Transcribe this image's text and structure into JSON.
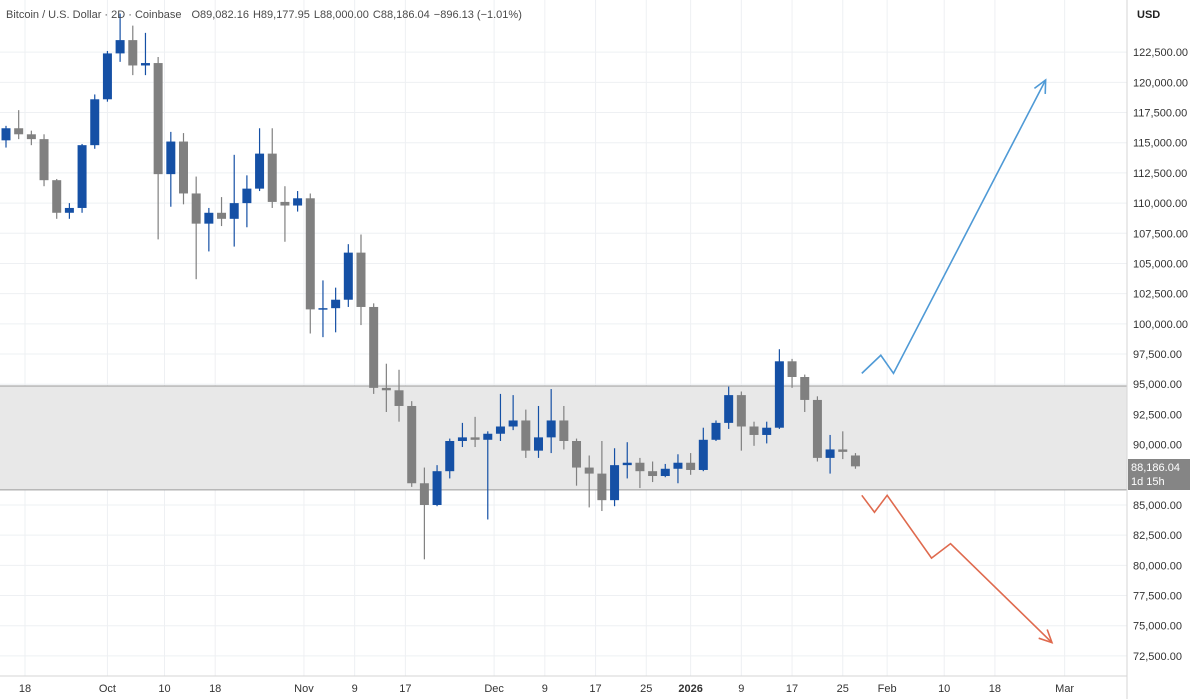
{
  "legend": {
    "symbol": "Bitcoin / U.S. Dollar · 2D · Coinbase",
    "open": "O89,082.16",
    "high": "H89,177.95",
    "low": "L88,000.00",
    "close": "C88,186.04",
    "change": "−896.13 (−1.01%)"
  },
  "currency": "USD",
  "last_price": {
    "value": "88,186.04",
    "countdown": "1d 15h"
  },
  "chart_data": {
    "type": "candlestick",
    "y_axis": {
      "range": [
        71500,
        125000
      ],
      "ticks": [
        72500,
        75000,
        77500,
        80000,
        82500,
        85000,
        87500,
        90000,
        92500,
        95000,
        97500,
        100000,
        102500,
        105000,
        107500,
        110000,
        112500,
        115000,
        117500,
        120000,
        122500
      ],
      "tick_labels": [
        "72,500.00",
        "75,000.00",
        "77,500.00",
        "80,000.00",
        "82,500.00",
        "85,000.00",
        "87,500.00",
        "90,000.00",
        "92,500.00",
        "95,000.00",
        "97,500.00",
        "100,000.00",
        "102,500.00",
        "105,000.00",
        "107,500.00",
        "110,000.00",
        "112,500.00",
        "115,000.00",
        "117,500.00",
        "120,000.00",
        "122,500.00"
      ]
    },
    "x_axis": {
      "start": "2025-09-15",
      "end": "2026-03-05",
      "ticks": [
        {
          "date": "2025-09-18",
          "label": "18"
        },
        {
          "date": "2025-10-01",
          "label": "Oct"
        },
        {
          "date": "2025-10-10",
          "label": "10"
        },
        {
          "date": "2025-10-18",
          "label": "18"
        },
        {
          "date": "2025-11-01",
          "label": "Nov"
        },
        {
          "date": "2025-11-09",
          "label": "9"
        },
        {
          "date": "2025-11-17",
          "label": "17"
        },
        {
          "date": "2025-12-01",
          "label": "Dec"
        },
        {
          "date": "2025-12-09",
          "label": "9"
        },
        {
          "date": "2025-12-17",
          "label": "17"
        },
        {
          "date": "2025-12-25",
          "label": "25"
        },
        {
          "date": "2026-01-01",
          "label": "2026",
          "bold": true
        },
        {
          "date": "2026-01-09",
          "label": "9"
        },
        {
          "date": "2026-01-17",
          "label": "17"
        },
        {
          "date": "2026-01-25",
          "label": "25"
        },
        {
          "date": "2026-02-01",
          "label": "Feb"
        },
        {
          "date": "2026-02-10",
          "label": "10"
        },
        {
          "date": "2026-02-18",
          "label": "18"
        },
        {
          "date": "2026-03-01",
          "label": "Mar"
        }
      ]
    },
    "candles": [
      {
        "date": "2025-09-15",
        "o": 115200,
        "h": 116400,
        "l": 114600,
        "c": 116200
      },
      {
        "date": "2025-09-17",
        "o": 116200,
        "h": 117700,
        "l": 115300,
        "c": 115700
      },
      {
        "date": "2025-09-19",
        "o": 115700,
        "h": 116000,
        "l": 114800,
        "c": 115300
      },
      {
        "date": "2025-09-21",
        "o": 115300,
        "h": 115700,
        "l": 111400,
        "c": 111900
      },
      {
        "date": "2025-09-23",
        "o": 111900,
        "h": 112000,
        "l": 108700,
        "c": 109200
      },
      {
        "date": "2025-09-25",
        "o": 109200,
        "h": 110000,
        "l": 108700,
        "c": 109600
      },
      {
        "date": "2025-09-27",
        "o": 109600,
        "h": 114900,
        "l": 109200,
        "c": 114800
      },
      {
        "date": "2025-09-29",
        "o": 114800,
        "h": 119000,
        "l": 114500,
        "c": 118600
      },
      {
        "date": "2025-10-01",
        "o": 118600,
        "h": 122600,
        "l": 118400,
        "c": 122400
      },
      {
        "date": "2025-10-03",
        "o": 122400,
        "h": 125700,
        "l": 121700,
        "c": 123500
      },
      {
        "date": "2025-10-05",
        "o": 123500,
        "h": 124700,
        "l": 120600,
        "c": 121400
      },
      {
        "date": "2025-10-07",
        "o": 121400,
        "h": 124100,
        "l": 120600,
        "c": 121600
      },
      {
        "date": "2025-10-09",
        "o": 121600,
        "h": 122100,
        "l": 107000,
        "c": 112400
      },
      {
        "date": "2025-10-11",
        "o": 112400,
        "h": 115900,
        "l": 109700,
        "c": 115100
      },
      {
        "date": "2025-10-13",
        "o": 115100,
        "h": 115800,
        "l": 109900,
        "c": 110800
      },
      {
        "date": "2025-10-15",
        "o": 110800,
        "h": 112200,
        "l": 103700,
        "c": 108300
      },
      {
        "date": "2025-10-17",
        "o": 108300,
        "h": 109600,
        "l": 106000,
        "c": 109200
      },
      {
        "date": "2025-10-19",
        "o": 109200,
        "h": 110500,
        "l": 108100,
        "c": 108700
      },
      {
        "date": "2025-10-21",
        "o": 108700,
        "h": 114000,
        "l": 106400,
        "c": 110000
      },
      {
        "date": "2025-10-23",
        "o": 110000,
        "h": 112300,
        "l": 108000,
        "c": 111200
      },
      {
        "date": "2025-10-25",
        "o": 111200,
        "h": 116200,
        "l": 111000,
        "c": 114100
      },
      {
        "date": "2025-10-27",
        "o": 114100,
        "h": 116200,
        "l": 109600,
        "c": 110100
      },
      {
        "date": "2025-10-29",
        "o": 110100,
        "h": 111400,
        "l": 106800,
        "c": 109800
      },
      {
        "date": "2025-10-31",
        "o": 109800,
        "h": 111000,
        "l": 109300,
        "c": 110400
      },
      {
        "date": "2025-11-02",
        "o": 110400,
        "h": 110800,
        "l": 99200,
        "c": 101200
      },
      {
        "date": "2025-11-04",
        "o": 101200,
        "h": 103600,
        "l": 98900,
        "c": 101300
      },
      {
        "date": "2025-11-06",
        "o": 101300,
        "h": 103000,
        "l": 99300,
        "c": 102000
      },
      {
        "date": "2025-11-08",
        "o": 102000,
        "h": 106600,
        "l": 101400,
        "c": 105900
      },
      {
        "date": "2025-11-10",
        "o": 105900,
        "h": 107400,
        "l": 99900,
        "c": 101400
      },
      {
        "date": "2025-11-12",
        "o": 101400,
        "h": 101700,
        "l": 94200,
        "c": 94700
      },
      {
        "date": "2025-11-14",
        "o": 94700,
        "h": 96700,
        "l": 92700,
        "c": 94500
      },
      {
        "date": "2025-11-16",
        "o": 94500,
        "h": 96200,
        "l": 91900,
        "c": 93200
      },
      {
        "date": "2025-11-18",
        "o": 93200,
        "h": 93600,
        "l": 86500,
        "c": 86800
      },
      {
        "date": "2025-11-20",
        "o": 86800,
        "h": 88100,
        "l": 80500,
        "c": 85000
      },
      {
        "date": "2025-11-22",
        "o": 85000,
        "h": 88300,
        "l": 84900,
        "c": 87800
      },
      {
        "date": "2025-11-24",
        "o": 87800,
        "h": 90500,
        "l": 87200,
        "c": 90300
      },
      {
        "date": "2025-11-26",
        "o": 90300,
        "h": 91800,
        "l": 89800,
        "c": 90600
      },
      {
        "date": "2025-11-28",
        "o": 90600,
        "h": 92300,
        "l": 89800,
        "c": 90400
      },
      {
        "date": "2025-11-30",
        "o": 90400,
        "h": 91100,
        "l": 83800,
        "c": 90900
      },
      {
        "date": "2025-12-02",
        "o": 90900,
        "h": 94200,
        "l": 90300,
        "c": 91500
      },
      {
        "date": "2025-12-04",
        "o": 91500,
        "h": 94100,
        "l": 91200,
        "c": 92000
      },
      {
        "date": "2025-12-06",
        "o": 92000,
        "h": 92900,
        "l": 88900,
        "c": 89500
      },
      {
        "date": "2025-12-08",
        "o": 89500,
        "h": 93200,
        "l": 88900,
        "c": 90600
      },
      {
        "date": "2025-12-10",
        "o": 90600,
        "h": 94600,
        "l": 89300,
        "c": 92000
      },
      {
        "date": "2025-12-12",
        "o": 92000,
        "h": 93200,
        "l": 89600,
        "c": 90300
      },
      {
        "date": "2025-12-14",
        "o": 90300,
        "h": 90500,
        "l": 86600,
        "c": 88100
      },
      {
        "date": "2025-12-16",
        "o": 88100,
        "h": 89100,
        "l": 84800,
        "c": 87600
      },
      {
        "date": "2025-12-18",
        "o": 87600,
        "h": 90300,
        "l": 84500,
        "c": 85400
      },
      {
        "date": "2025-12-20",
        "o": 85400,
        "h": 89700,
        "l": 84900,
        "c": 88300
      },
      {
        "date": "2025-12-22",
        "o": 88300,
        "h": 90200,
        "l": 87200,
        "c": 88500
      },
      {
        "date": "2025-12-24",
        "o": 88500,
        "h": 88900,
        "l": 86400,
        "c": 87800
      },
      {
        "date": "2025-12-26",
        "o": 87800,
        "h": 88600,
        "l": 86900,
        "c": 87400
      },
      {
        "date": "2025-12-28",
        "o": 87400,
        "h": 88400,
        "l": 87300,
        "c": 88000
      },
      {
        "date": "2025-12-30",
        "o": 88000,
        "h": 89200,
        "l": 86800,
        "c": 88500
      },
      {
        "date": "2026-01-01",
        "o": 88500,
        "h": 89300,
        "l": 87500,
        "c": 87900
      },
      {
        "date": "2026-01-03",
        "o": 87900,
        "h": 91400,
        "l": 87800,
        "c": 90400
      },
      {
        "date": "2026-01-05",
        "o": 90400,
        "h": 92000,
        "l": 90300,
        "c": 91800
      },
      {
        "date": "2026-01-07",
        "o": 91800,
        "h": 94800,
        "l": 91300,
        "c": 94100
      },
      {
        "date": "2026-01-09",
        "o": 94100,
        "h": 94400,
        "l": 89500,
        "c": 91500
      },
      {
        "date": "2026-01-11",
        "o": 91500,
        "h": 91900,
        "l": 89900,
        "c": 90800
      },
      {
        "date": "2026-01-13",
        "o": 90800,
        "h": 91900,
        "l": 90100,
        "c": 91400
      },
      {
        "date": "2026-01-15",
        "o": 91400,
        "h": 97900,
        "l": 91300,
        "c": 96900
      },
      {
        "date": "2026-01-17",
        "o": 96900,
        "h": 97100,
        "l": 94700,
        "c": 95600
      },
      {
        "date": "2026-01-19",
        "o": 95600,
        "h": 95800,
        "l": 92700,
        "c": 93700
      },
      {
        "date": "2026-01-21",
        "o": 93700,
        "h": 94000,
        "l": 88600,
        "c": 88900
      },
      {
        "date": "2026-01-23",
        "o": 88900,
        "h": 90800,
        "l": 87600,
        "c": 89600
      },
      {
        "date": "2026-01-25",
        "o": 89600,
        "h": 91100,
        "l": 88800,
        "c": 89400
      },
      {
        "date": "2026-01-27",
        "o": 89100,
        "h": 89300,
        "l": 88000,
        "c": 88200
      }
    ],
    "zone": {
      "y_low": 86250,
      "y_high": 94850
    },
    "projections": [
      {
        "color": "#4f9ad6",
        "points": [
          [
            "2026-01-28",
            95900
          ],
          [
            "2026-01-31",
            97400
          ],
          [
            "2026-02-02",
            95900
          ],
          [
            "2026-02-26",
            120200
          ]
        ],
        "arrow": "end"
      },
      {
        "color": "#df6a4e",
        "points": [
          [
            "2026-01-28",
            85800
          ],
          [
            "2026-01-30",
            84400
          ],
          [
            "2026-02-01",
            85800
          ],
          [
            "2026-02-08",
            80600
          ],
          [
            "2026-02-11",
            81800
          ],
          [
            "2026-02-27",
            73600
          ]
        ],
        "arrow": "end"
      }
    ],
    "colors": {
      "bull": "#1550a5",
      "bear": "#808080",
      "zone_fill": "#e8e8e8",
      "zone_line": "#9a9a9a",
      "grid": "#eef0f3"
    }
  }
}
